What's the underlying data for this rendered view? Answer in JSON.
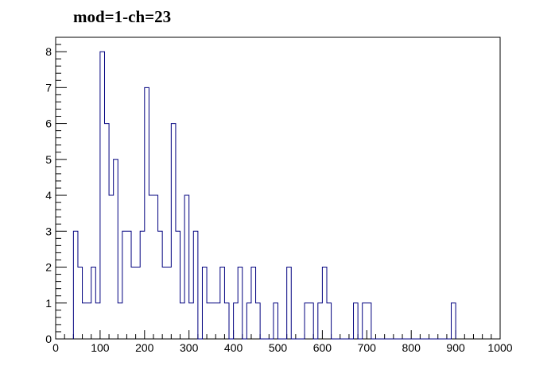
{
  "chart_data": {
    "type": "bar",
    "subtype": "step-histogram",
    "title": "mod=1-ch=23",
    "xlabel": "",
    "ylabel": "",
    "xlim": [
      0,
      1000
    ],
    "ylim": [
      0,
      8.4
    ],
    "bin_width": 10,
    "x_ticks": [
      0,
      100,
      200,
      300,
      400,
      500,
      600,
      700,
      800,
      900,
      1000
    ],
    "y_ticks": [
      0,
      1,
      2,
      3,
      4,
      5,
      6,
      7,
      8
    ],
    "grid": false,
    "legend": "none",
    "line_color": "#00007f",
    "bins": [
      {
        "x": 40,
        "y": 3
      },
      {
        "x": 50,
        "y": 2
      },
      {
        "x": 60,
        "y": 1
      },
      {
        "x": 70,
        "y": 1
      },
      {
        "x": 80,
        "y": 2
      },
      {
        "x": 90,
        "y": 1
      },
      {
        "x": 100,
        "y": 8
      },
      {
        "x": 110,
        "y": 6
      },
      {
        "x": 120,
        "y": 4
      },
      {
        "x": 130,
        "y": 5
      },
      {
        "x": 140,
        "y": 1
      },
      {
        "x": 150,
        "y": 3
      },
      {
        "x": 160,
        "y": 3
      },
      {
        "x": 170,
        "y": 2
      },
      {
        "x": 180,
        "y": 2
      },
      {
        "x": 190,
        "y": 3
      },
      {
        "x": 200,
        "y": 7
      },
      {
        "x": 210,
        "y": 4
      },
      {
        "x": 220,
        "y": 4
      },
      {
        "x": 230,
        "y": 3
      },
      {
        "x": 240,
        "y": 2
      },
      {
        "x": 250,
        "y": 2
      },
      {
        "x": 260,
        "y": 6
      },
      {
        "x": 270,
        "y": 3
      },
      {
        "x": 280,
        "y": 1
      },
      {
        "x": 290,
        "y": 4
      },
      {
        "x": 300,
        "y": 1
      },
      {
        "x": 310,
        "y": 3
      },
      {
        "x": 320,
        "y": 0
      },
      {
        "x": 330,
        "y": 2
      },
      {
        "x": 340,
        "y": 1
      },
      {
        "x": 350,
        "y": 1
      },
      {
        "x": 360,
        "y": 1
      },
      {
        "x": 370,
        "y": 2
      },
      {
        "x": 380,
        "y": 1
      },
      {
        "x": 390,
        "y": 0
      },
      {
        "x": 400,
        "y": 1
      },
      {
        "x": 410,
        "y": 2
      },
      {
        "x": 420,
        "y": 0
      },
      {
        "x": 430,
        "y": 1
      },
      {
        "x": 440,
        "y": 2
      },
      {
        "x": 450,
        "y": 1
      },
      {
        "x": 460,
        "y": 0
      },
      {
        "x": 470,
        "y": 0
      },
      {
        "x": 480,
        "y": 0
      },
      {
        "x": 490,
        "y": 1
      },
      {
        "x": 500,
        "y": 0
      },
      {
        "x": 510,
        "y": 0
      },
      {
        "x": 520,
        "y": 2
      },
      {
        "x": 530,
        "y": 0
      },
      {
        "x": 540,
        "y": 0
      },
      {
        "x": 550,
        "y": 0
      },
      {
        "x": 560,
        "y": 1
      },
      {
        "x": 570,
        "y": 1
      },
      {
        "x": 580,
        "y": 0
      },
      {
        "x": 590,
        "y": 1
      },
      {
        "x": 600,
        "y": 2
      },
      {
        "x": 610,
        "y": 1
      },
      {
        "x": 620,
        "y": 0
      },
      {
        "x": 630,
        "y": 0
      },
      {
        "x": 640,
        "y": 0
      },
      {
        "x": 650,
        "y": 0
      },
      {
        "x": 660,
        "y": 0
      },
      {
        "x": 670,
        "y": 1
      },
      {
        "x": 680,
        "y": 0
      },
      {
        "x": 690,
        "y": 1
      },
      {
        "x": 700,
        "y": 1
      },
      {
        "x": 710,
        "y": 0
      },
      {
        "x": 720,
        "y": 0
      },
      {
        "x": 730,
        "y": 0
      },
      {
        "x": 740,
        "y": 0
      },
      {
        "x": 750,
        "y": 0
      },
      {
        "x": 760,
        "y": 0
      },
      {
        "x": 770,
        "y": 0
      },
      {
        "x": 780,
        "y": 0
      },
      {
        "x": 790,
        "y": 0
      },
      {
        "x": 800,
        "y": 0
      },
      {
        "x": 810,
        "y": 0
      },
      {
        "x": 820,
        "y": 0
      },
      {
        "x": 830,
        "y": 0
      },
      {
        "x": 840,
        "y": 0
      },
      {
        "x": 850,
        "y": 0
      },
      {
        "x": 860,
        "y": 0
      },
      {
        "x": 870,
        "y": 0
      },
      {
        "x": 880,
        "y": 0
      },
      {
        "x": 890,
        "y": 1
      }
    ]
  }
}
